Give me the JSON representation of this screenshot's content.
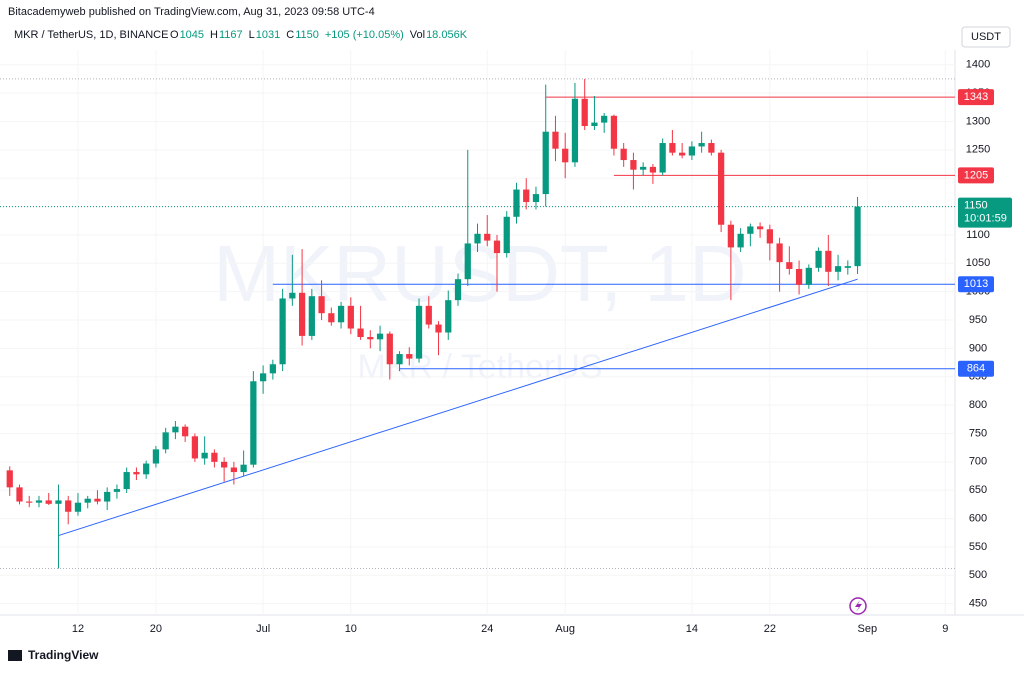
{
  "header": "Bitacademyweb published on TradingView.com, Aug 31, 2023 09:58 UTC-4",
  "footer": "TradingView",
  "chart_data": {
    "type": "candlestick",
    "title": "MKR / TetherUS, 1D, BINANCE",
    "watermark": "MKRUSDT, 1D",
    "watermark_subtitle": "MKR / TetherUS",
    "currency": "USDT",
    "legend": [
      {
        "label": "O",
        "value": 1045
      },
      {
        "label": "H",
        "value": 1167
      },
      {
        "label": "L",
        "value": 1031
      },
      {
        "label": "C",
        "value": 1150
      }
    ],
    "change": "+105 (+10.05%)",
    "volume": {
      "label": "Vol",
      "value": "18.056K"
    },
    "countdown": "10:01:59",
    "up_color": "#089981",
    "down_color": "#f23645",
    "open": [
      685,
      655,
      630,
      628,
      632,
      626,
      632,
      612,
      628,
      635,
      630,
      647,
      652,
      682,
      678,
      697,
      722,
      752,
      762,
      745,
      706,
      716,
      700,
      690,
      682,
      695,
      842,
      856,
      872,
      988,
      998,
      922,
      992,
      962,
      946,
      975,
      935,
      920,
      916,
      926,
      872,
      890,
      882,
      975,
      942,
      928,
      985,
      1022,
      1085,
      1102,
      1090,
      1068,
      1132,
      1180,
      1158,
      1172,
      1282,
      1252,
      1228,
      1340,
      1292,
      1298,
      1310,
      1252,
      1232,
      1215,
      1220,
      1210,
      1262,
      1245,
      1240,
      1256,
      1262,
      1245,
      1118,
      1078,
      1102,
      1115,
      1110,
      1085,
      1052,
      1040,
      1012,
      1042,
      1072,
      1035,
      1042,
      1045
    ],
    "high": [
      692,
      660,
      640,
      640,
      645,
      660,
      640,
      645,
      640,
      650,
      655,
      660,
      690,
      690,
      702,
      728,
      760,
      772,
      766,
      750,
      745,
      722,
      708,
      700,
      720,
      860,
      870,
      880,
      1005,
      1065,
      1075,
      1005,
      1020,
      972,
      982,
      990,
      975,
      932,
      940,
      930,
      895,
      902,
      988,
      992,
      948,
      1002,
      1032,
      1250,
      1120,
      1135,
      1100,
      1142,
      1192,
      1200,
      1185,
      1365,
      1310,
      1280,
      1368,
      1375,
      1345,
      1315,
      1312,
      1262,
      1245,
      1228,
      1225,
      1270,
      1285,
      1262,
      1265,
      1282,
      1268,
      1250,
      1125,
      1112,
      1120,
      1122,
      1118,
      1095,
      1080,
      1055,
      1048,
      1078,
      1100,
      1065,
      1055,
      1167
    ],
    "low": [
      640,
      625,
      620,
      620,
      624,
      512,
      590,
      605,
      618,
      625,
      615,
      635,
      645,
      668,
      670,
      690,
      715,
      740,
      735,
      700,
      695,
      690,
      665,
      660,
      675,
      690,
      820,
      845,
      860,
      975,
      905,
      915,
      950,
      940,
      935,
      925,
      915,
      900,
      895,
      845,
      860,
      870,
      875,
      935,
      888,
      915,
      975,
      1010,
      1070,
      1080,
      1000,
      1060,
      1120,
      1145,
      1145,
      1150,
      1230,
      1200,
      1220,
      1285,
      1285,
      1280,
      1240,
      1220,
      1180,
      1205,
      1190,
      1205,
      1240,
      1235,
      1232,
      1245,
      1240,
      1105,
      985,
      1070,
      1080,
      1095,
      1055,
      1000,
      1030,
      995,
      1005,
      1035,
      1010,
      1020,
      1030,
      1031
    ],
    "close": [
      655,
      630,
      628,
      632,
      626,
      632,
      612,
      628,
      635,
      630,
      647,
      652,
      682,
      678,
      697,
      722,
      752,
      762,
      745,
      706,
      716,
      700,
      690,
      682,
      695,
      842,
      856,
      872,
      988,
      998,
      922,
      992,
      962,
      946,
      975,
      935,
      920,
      916,
      926,
      872,
      890,
      882,
      975,
      942,
      928,
      985,
      1022,
      1085,
      1102,
      1090,
      1068,
      1132,
      1180,
      1158,
      1172,
      1282,
      1252,
      1228,
      1340,
      1292,
      1298,
      1310,
      1252,
      1232,
      1215,
      1220,
      1210,
      1262,
      1245,
      1240,
      1256,
      1262,
      1245,
      1118,
      1078,
      1102,
      1115,
      1110,
      1085,
      1052,
      1040,
      1012,
      1042,
      1072,
      1035,
      1045,
      1045,
      1150
    ],
    "xlim": [
      -1,
      97
    ],
    "xticks": [
      {
        "value": 7,
        "label": "12"
      },
      {
        "value": 15,
        "label": "20"
      },
      {
        "value": 26,
        "label": "Jul"
      },
      {
        "value": 35,
        "label": "10"
      },
      {
        "value": 49,
        "label": "24"
      },
      {
        "value": 57,
        "label": "Aug"
      },
      {
        "value": 70,
        "label": "14"
      },
      {
        "value": 78,
        "label": "22"
      },
      {
        "value": 88,
        "label": "Sep"
      },
      {
        "value": 96,
        "label": "9"
      }
    ],
    "ylim": [
      430,
      1426
    ],
    "yticks": [
      450,
      500,
      550,
      600,
      650,
      700,
      750,
      800,
      850,
      900,
      950,
      1000,
      1050,
      1100,
      1150,
      1200,
      1250,
      1300,
      1350,
      1400
    ],
    "levels": [
      {
        "value": 1343,
        "start": 55,
        "color": "#f23645"
      },
      {
        "value": 1205,
        "start": 62,
        "color": "#f23645"
      },
      {
        "value": 1013,
        "start": 27,
        "color": "#2962ff"
      },
      {
        "value": 864,
        "start": 40,
        "color": "#2962ff"
      }
    ],
    "trendline": {
      "x": [
        5,
        87
      ],
      "y": [
        570,
        1022
      ],
      "color": "#2962ff"
    }
  }
}
